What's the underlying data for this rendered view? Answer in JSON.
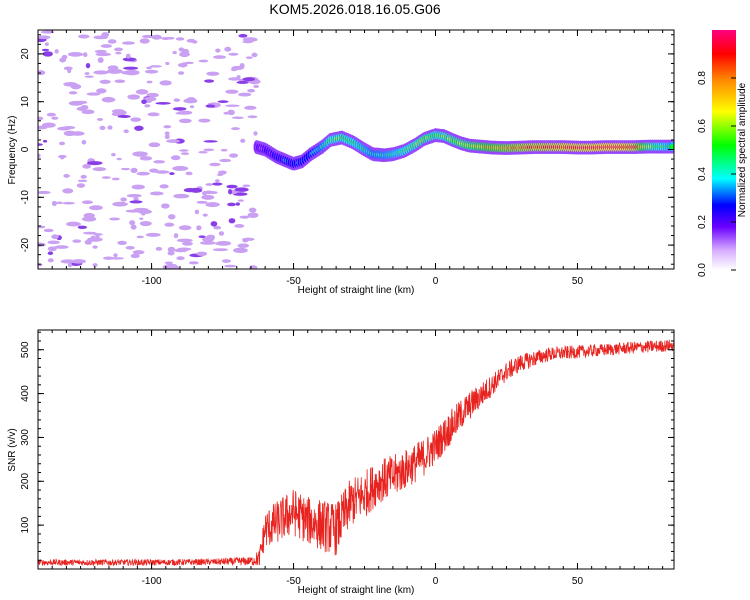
{
  "title": "KOM5.2026.018.16.05.G06",
  "colors": {
    "axis": "#000000",
    "snr_line": "#e8231f",
    "noise_blob": "#c9a0f2",
    "noise_blob_dark": "#8a3ee8"
  },
  "chart_data": [
    {
      "id": "spectrogram",
      "type": "heatmap",
      "xlabel": "Height of straight line (km)",
      "ylabel": "Frequency (Hz)",
      "xlim": [
        -140,
        84
      ],
      "ylim": [
        -25,
        25
      ],
      "xticks": [
        -100,
        -50,
        0,
        50
      ],
      "yticks": [
        -20,
        -10,
        0,
        10,
        20
      ],
      "xtick_labels": [
        "-100",
        "-50",
        "0",
        "50"
      ],
      "ytick_labels": [
        "-20",
        "-10",
        "0",
        "10",
        "20"
      ],
      "noise_region_x": [
        -140,
        -63
      ],
      "signal_track": {
        "x": [
          -63,
          -60,
          -56,
          -52,
          -50,
          -47,
          -44,
          -40,
          -37,
          -33,
          -29,
          -25,
          -22,
          -18,
          -15,
          -11,
          -7,
          -4,
          0,
          3,
          6,
          9,
          12,
          16,
          20,
          25,
          30,
          35,
          40,
          45,
          50,
          55,
          60,
          65,
          70,
          75,
          80,
          84
        ],
        "freq": [
          0.5,
          0,
          -1.5,
          -2.5,
          -3,
          -2.5,
          -1,
          0.5,
          2,
          2.5,
          1.5,
          0,
          -1,
          -1.2,
          -1,
          -0.3,
          1,
          2.2,
          3,
          2.8,
          2,
          1.3,
          0.8,
          0.6,
          0.4,
          0.3,
          0.4,
          0.5,
          0.5,
          0.5,
          0.4,
          0.4,
          0.5,
          0.5,
          0.5,
          0.6,
          0.6,
          0.6
        ],
        "amplitude": [
          0.15,
          0.2,
          0.25,
          0.3,
          0.3,
          0.3,
          0.32,
          0.4,
          0.5,
          0.55,
          0.5,
          0.45,
          0.4,
          0.42,
          0.45,
          0.5,
          0.55,
          0.6,
          0.55,
          0.55,
          0.6,
          0.62,
          0.65,
          0.7,
          0.75,
          0.8,
          0.85,
          0.88,
          0.9,
          0.92,
          0.93,
          0.94,
          0.95,
          0.95,
          0.9,
          0.6,
          0.5,
          0.45
        ]
      },
      "colorbar": {
        "label": "Normalized spectral amplitude",
        "range": [
          0,
          1
        ],
        "ticks": [
          0,
          0.2,
          0.4,
          0.6,
          0.8
        ],
        "tick_labels": [
          "0.0",
          "0.2",
          "0.4",
          "0.6",
          "0.8"
        ]
      }
    },
    {
      "id": "snr",
      "type": "line",
      "xlabel": "Height of straight line (km)",
      "ylabel": "SNR (v/v)",
      "xlim": [
        -140,
        84
      ],
      "ylim": [
        0,
        545
      ],
      "xticks": [
        -100,
        -50,
        0,
        50
      ],
      "yticks": [
        100,
        200,
        300,
        400,
        500
      ],
      "xtick_labels": [
        "-100",
        "-50",
        "0",
        "50"
      ],
      "ytick_labels": [
        "100",
        "200",
        "300",
        "400",
        "500"
      ],
      "series": [
        {
          "name": "SNR",
          "x": [
            -140,
            -120,
            -100,
            -80,
            -65,
            -62,
            -60,
            -55,
            -50,
            -45,
            -40,
            -35,
            -30,
            -25,
            -20,
            -15,
            -10,
            -5,
            0,
            5,
            10,
            15,
            20,
            25,
            30,
            35,
            40,
            50,
            60,
            70,
            84
          ],
          "y": [
            15,
            15,
            15,
            16,
            18,
            25,
            90,
            110,
            130,
            110,
            100,
            90,
            150,
            170,
            200,
            210,
            230,
            250,
            280,
            320,
            360,
            390,
            420,
            450,
            470,
            480,
            490,
            495,
            500,
            505,
            510
          ],
          "noise": [
            7,
            7,
            7,
            7,
            10,
            20,
            45,
            50,
            55,
            55,
            60,
            60,
            55,
            55,
            50,
            50,
            45,
            45,
            40,
            40,
            35,
            30,
            25,
            22,
            20,
            18,
            16,
            15,
            14,
            14,
            14
          ]
        }
      ]
    }
  ]
}
